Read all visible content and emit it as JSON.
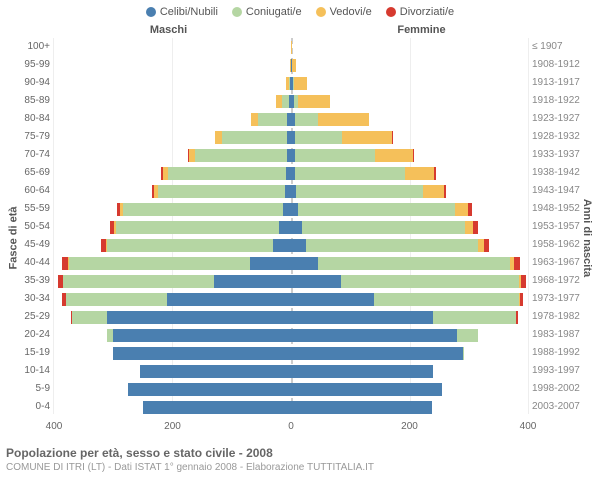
{
  "legend": [
    {
      "label": "Celibi/Nubili",
      "color": "#4a7fb0"
    },
    {
      "label": "Coniugati/e",
      "color": "#b5d6a3"
    },
    {
      "label": "Vedovi/e",
      "color": "#f5c05a"
    },
    {
      "label": "Divorziati/e",
      "color": "#d63a2f"
    }
  ],
  "section_labels": {
    "left": "Maschi",
    "right": "Femmine"
  },
  "axis_labels": {
    "left": "Fasce di età",
    "right": "Anni di nascita"
  },
  "ages": [
    "100+",
    "95-99",
    "90-94",
    "85-89",
    "80-84",
    "75-79",
    "70-74",
    "65-69",
    "60-64",
    "55-59",
    "50-54",
    "45-49",
    "40-44",
    "35-39",
    "30-34",
    "25-29",
    "20-24",
    "15-19",
    "10-14",
    "5-9",
    "0-4"
  ],
  "births": [
    "≤ 1907",
    "1908-1912",
    "1913-1917",
    "1918-1922",
    "1923-1927",
    "1928-1932",
    "1933-1937",
    "1938-1942",
    "1943-1947",
    "1948-1952",
    "1953-1957",
    "1958-1962",
    "1963-1967",
    "1968-1972",
    "1973-1977",
    "1978-1982",
    "1983-1987",
    "1988-1992",
    "1993-1997",
    "1998-2002",
    "2003-2007"
  ],
  "xmax": 400,
  "xticks": [
    400,
    200,
    0,
    200,
    400
  ],
  "rows": [
    {
      "m": [
        0,
        0,
        0,
        0
      ],
      "f": [
        0,
        0,
        2,
        0
      ]
    },
    {
      "m": [
        0,
        0,
        1,
        0
      ],
      "f": [
        2,
        0,
        7,
        0
      ]
    },
    {
      "m": [
        2,
        2,
        5,
        0
      ],
      "f": [
        3,
        2,
        22,
        0
      ]
    },
    {
      "m": [
        3,
        12,
        10,
        0
      ],
      "f": [
        5,
        6,
        55,
        0
      ]
    },
    {
      "m": [
        6,
        50,
        12,
        0
      ],
      "f": [
        6,
        40,
        85,
        0
      ]
    },
    {
      "m": [
        7,
        110,
        12,
        0
      ],
      "f": [
        6,
        80,
        85,
        2
      ]
    },
    {
      "m": [
        7,
        155,
        10,
        2
      ],
      "f": [
        6,
        135,
        65,
        2
      ]
    },
    {
      "m": [
        8,
        200,
        8,
        3
      ],
      "f": [
        7,
        185,
        50,
        3
      ]
    },
    {
      "m": [
        10,
        215,
        6,
        4
      ],
      "f": [
        8,
        215,
        35,
        4
      ]
    },
    {
      "m": [
        14,
        270,
        4,
        6
      ],
      "f": [
        12,
        265,
        22,
        6
      ]
    },
    {
      "m": [
        20,
        275,
        3,
        8
      ],
      "f": [
        18,
        275,
        15,
        8
      ]
    },
    {
      "m": [
        30,
        280,
        2,
        9
      ],
      "f": [
        25,
        290,
        10,
        9
      ]
    },
    {
      "m": [
        70,
        305,
        1,
        10
      ],
      "f": [
        45,
        325,
        6,
        10
      ]
    },
    {
      "m": [
        130,
        255,
        0,
        8
      ],
      "f": [
        85,
        300,
        3,
        8
      ]
    },
    {
      "m": [
        210,
        170,
        0,
        6
      ],
      "f": [
        140,
        245,
        1,
        6
      ]
    },
    {
      "m": [
        310,
        60,
        0,
        2
      ],
      "f": [
        240,
        140,
        0,
        3
      ]
    },
    {
      "m": [
        300,
        10,
        0,
        0
      ],
      "f": [
        280,
        35,
        0,
        0
      ]
    },
    {
      "m": [
        300,
        0,
        0,
        0
      ],
      "f": [
        290,
        2,
        0,
        0
      ]
    },
    {
      "m": [
        255,
        0,
        0,
        0
      ],
      "f": [
        240,
        0,
        0,
        0
      ]
    },
    {
      "m": [
        275,
        0,
        0,
        0
      ],
      "f": [
        255,
        0,
        0,
        0
      ]
    },
    {
      "m": [
        250,
        0,
        0,
        0
      ],
      "f": [
        238,
        0,
        0,
        0
      ]
    }
  ],
  "caption1": "Popolazione per età, sesso e stato civile - 2008",
  "caption2": "COMUNE DI ITRI (LT) - Dati ISTAT 1° gennaio 2008 - Elaborazione TUTTITALIA.IT",
  "colors": {
    "single": "#4a7fb0",
    "married": "#b5d6a3",
    "widowed": "#f5c05a",
    "divorced": "#d63a2f"
  }
}
